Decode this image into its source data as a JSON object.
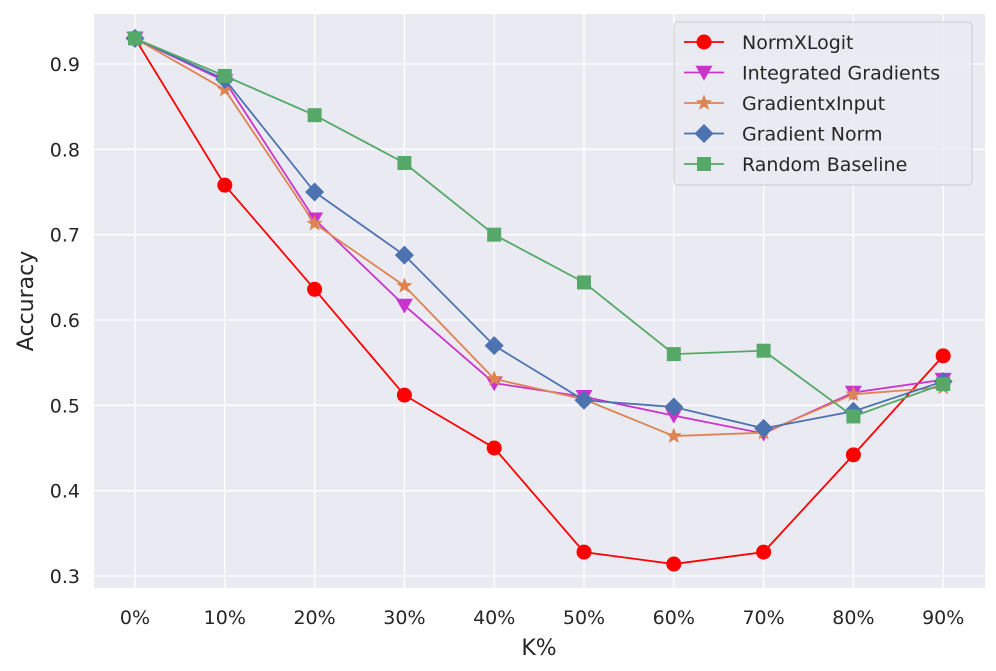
{
  "chart_data": {
    "type": "line",
    "title": "",
    "xlabel": "K%",
    "ylabel": "Accuracy",
    "categories": [
      "0%",
      "10%",
      "20%",
      "30%",
      "40%",
      "50%",
      "60%",
      "70%",
      "80%",
      "90%"
    ],
    "ylim": [
      0.285,
      0.96
    ],
    "yticks": [
      0.3,
      0.4,
      0.5,
      0.6,
      0.7,
      0.8,
      0.9
    ],
    "ytick_labels": [
      "0.3",
      "0.4",
      "0.5",
      "0.6",
      "0.7",
      "0.8",
      "0.9"
    ],
    "grid": true,
    "legend_position": "top-right",
    "series": [
      {
        "name": "NormXLogit",
        "color": "#ff0000",
        "marker": "circle",
        "values": [
          0.93,
          0.758,
          0.636,
          0.512,
          0.45,
          0.328,
          0.314,
          0.328,
          0.442,
          0.558
        ]
      },
      {
        "name": "Integrated Gradients",
        "color": "#cc33cc",
        "marker": "triangle-down",
        "values": [
          0.93,
          0.88,
          0.718,
          0.617,
          0.526,
          0.51,
          0.488,
          0.467,
          0.515,
          0.53
        ]
      },
      {
        "name": "GradientxInput",
        "color": "#dd8452",
        "marker": "star",
        "values": [
          0.93,
          0.87,
          0.713,
          0.64,
          0.531,
          0.507,
          0.464,
          0.468,
          0.513,
          0.521
        ]
      },
      {
        "name": "Gradient Norm",
        "color": "#4c72b0",
        "marker": "diamond",
        "values": [
          0.93,
          0.882,
          0.75,
          0.676,
          0.57,
          0.506,
          0.498,
          0.473,
          0.493,
          0.528
        ]
      },
      {
        "name": "Random Baseline",
        "color": "#55a868",
        "marker": "square",
        "values": [
          0.93,
          0.886,
          0.84,
          0.784,
          0.7,
          0.644,
          0.56,
          0.564,
          0.487,
          0.525
        ]
      }
    ]
  }
}
